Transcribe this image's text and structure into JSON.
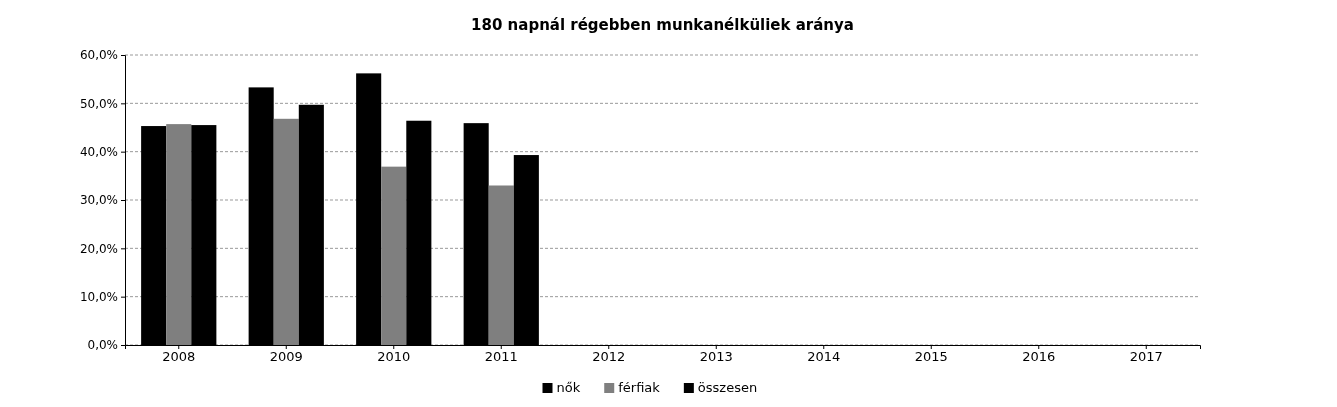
{
  "chart_data": {
    "type": "bar",
    "title": "180 napnál régebben munkanélküliek aránya",
    "categories": [
      "2008",
      "2009",
      "2010",
      "2011",
      "2012",
      "2013",
      "2014",
      "2015",
      "2016",
      "2017"
    ],
    "series": [
      {
        "name": "nők",
        "color": "#000000",
        "values": [
          45.3,
          53.3,
          56.2,
          45.9,
          null,
          null,
          null,
          null,
          null,
          null
        ]
      },
      {
        "name": "férfiak",
        "color": "#7f7f7f",
        "values": [
          45.7,
          46.8,
          36.9,
          33.0,
          null,
          null,
          null,
          null,
          null,
          null
        ]
      },
      {
        "name": "összesen",
        "color": "#000000",
        "values": [
          45.5,
          49.7,
          46.4,
          39.3,
          null,
          null,
          null,
          null,
          null,
          null
        ]
      }
    ],
    "ylim": [
      0,
      60
    ],
    "yticks": [
      {
        "value": 0,
        "label": "0,0%"
      },
      {
        "value": 10,
        "label": "10,0%"
      },
      {
        "value": 20,
        "label": "20,0%"
      },
      {
        "value": 30,
        "label": "30,0%"
      },
      {
        "value": 40,
        "label": "40,0%"
      },
      {
        "value": 50,
        "label": "50,0%"
      },
      {
        "value": 60,
        "label": "60,0%"
      }
    ],
    "grid": "y",
    "legend": "bottom"
  }
}
